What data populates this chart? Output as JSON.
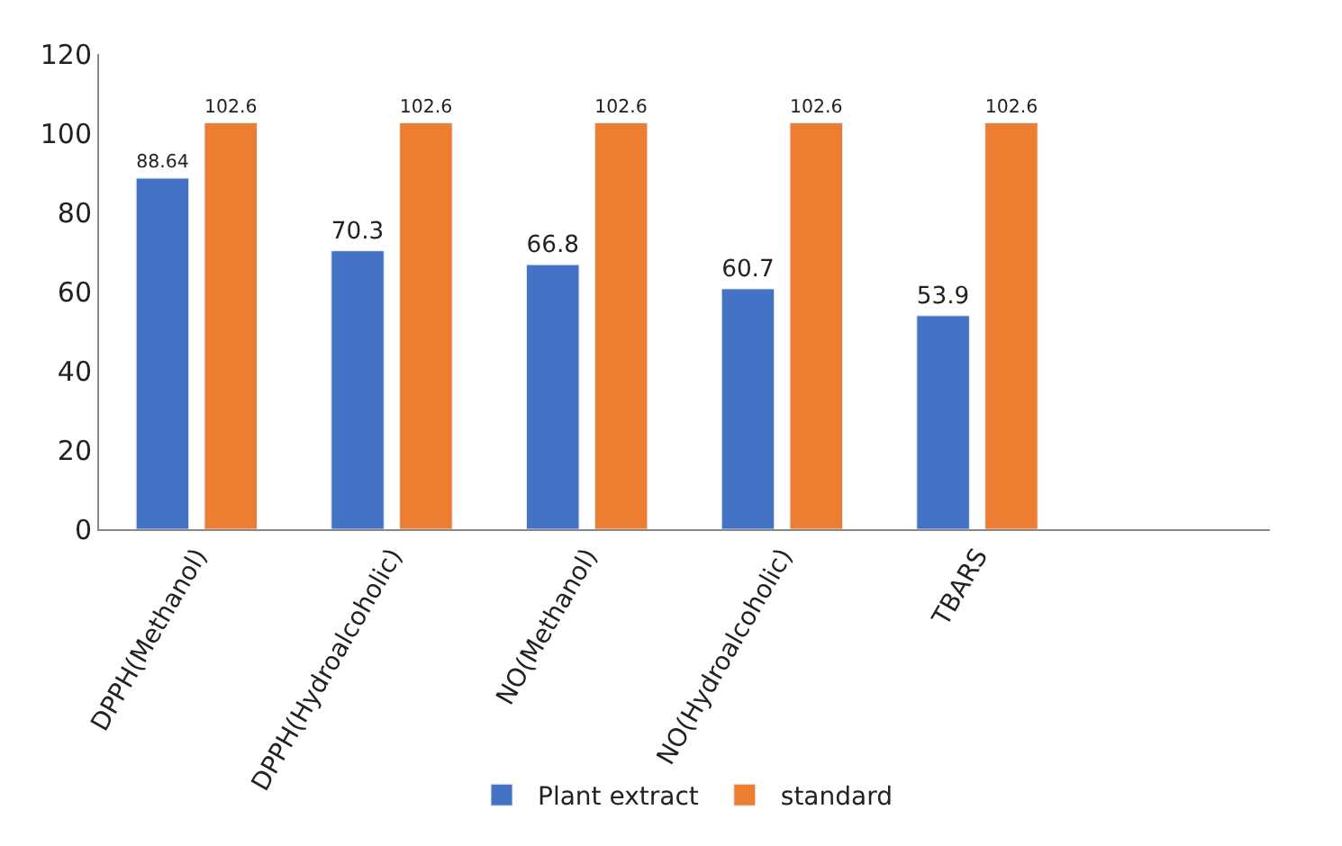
{
  "chart_data": {
    "type": "bar",
    "categories": [
      "DPPH(Methanol)",
      "DPPH(Hydroalcoholic)",
      "NO(Methanol)",
      "NO(Hydroalcoholic)",
      "TBARS",
      null
    ],
    "series": [
      {
        "name": "Plant extract",
        "color": "#4472c4",
        "values": [
          88.64,
          70.3,
          66.8,
          60.7,
          53.9,
          null
        ]
      },
      {
        "name": "standard",
        "color": "#ed7d31",
        "values": [
          102.6,
          102.6,
          102.6,
          102.6,
          102.6,
          null
        ]
      }
    ],
    "ylim": [
      0,
      120
    ],
    "yticks": [
      0,
      20,
      40,
      60,
      80,
      100,
      120
    ],
    "legend": "bottom",
    "data_labels": true
  }
}
